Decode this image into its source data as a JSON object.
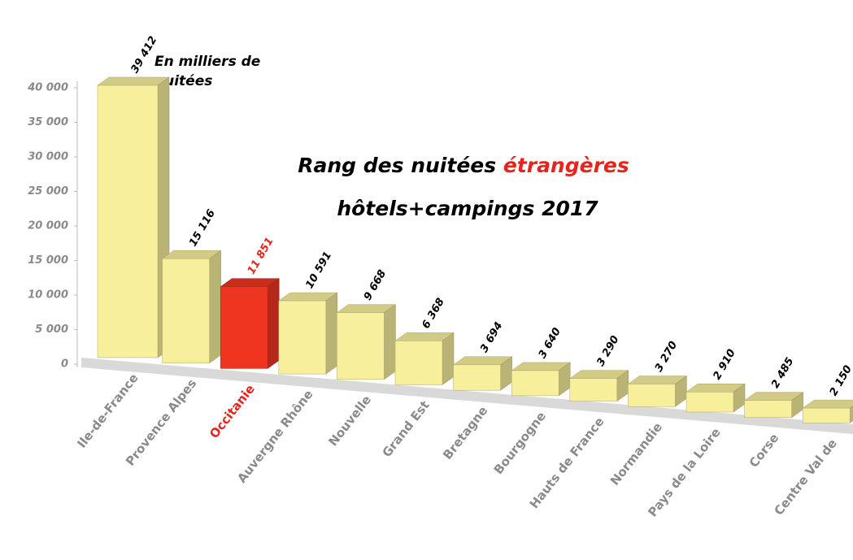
{
  "chart_data": {
    "type": "bar3d",
    "title": [
      "Rang des nuitées ",
      "étrangères",
      "hôtels+campings 2017"
    ],
    "title_colors": [
      "#000000",
      "#e8231e",
      "#000000"
    ],
    "annotation": [
      "En milliers de",
      "nuitées"
    ],
    "categories": [
      "Ile-de-France",
      "Provence Alpes",
      "Occitanie",
      "Auvergne Rhône",
      "Nouvelle",
      "Grand Est",
      "Bretagne",
      "Bourgogne",
      "Hauts de France",
      "Normandie",
      "Pays de la Loire",
      "Corse",
      "Centre Val de"
    ],
    "values": [
      39412,
      15116,
      11851,
      10591,
      9668,
      6368,
      3694,
      3640,
      3290,
      3270,
      2910,
      2485,
      2150
    ],
    "value_labels": [
      "39 412",
      "15 116",
      "11 851",
      "10 591",
      "9 668",
      "6 368",
      "3 694",
      "3 640",
      "3 290",
      "3 270",
      "2 910",
      "2 485",
      "2 150"
    ],
    "colors": [
      "#f7ef9c",
      "#f7ef9c",
      "#ee3520",
      "#f7ef9c",
      "#f7ef9c",
      "#f7ef9c",
      "#f7ef9c",
      "#f7ef9c",
      "#f7ef9c",
      "#f7ef9c",
      "#f7ef9c",
      "#f7ef9c",
      "#f7ef9c"
    ],
    "label_colors": [
      "#8a8a8a",
      "#8a8a8a",
      "#e8231e",
      "#8a8a8a",
      "#8a8a8a",
      "#8a8a8a",
      "#8a8a8a",
      "#8a8a8a",
      "#8a8a8a",
      "#8a8a8a",
      "#8a8a8a",
      "#8a8a8a",
      "#8a8a8a"
    ],
    "value_label_colors": [
      "#000000",
      "#000000",
      "#e8231e",
      "#000000",
      "#000000",
      "#000000",
      "#000000",
      "#000000",
      "#000000",
      "#000000",
      "#000000",
      "#000000",
      "#000000"
    ],
    "ylim": [
      0,
      40000
    ],
    "yticks": [
      0,
      {
        "value": 5000,
        "label": "5 000"
      },
      {
        "value": 10000,
        "label": "10 000"
      },
      {
        "value": 15000,
        "label": "15 000"
      },
      {
        "value": 20000,
        "label": "20 000"
      },
      {
        "value": 25000,
        "label": "25 000"
      },
      {
        "value": 30000,
        "label": "30 000"
      },
      {
        "value": 35000,
        "label": "35 000"
      },
      {
        "value": 40000,
        "label": "40 000"
      }
    ]
  }
}
